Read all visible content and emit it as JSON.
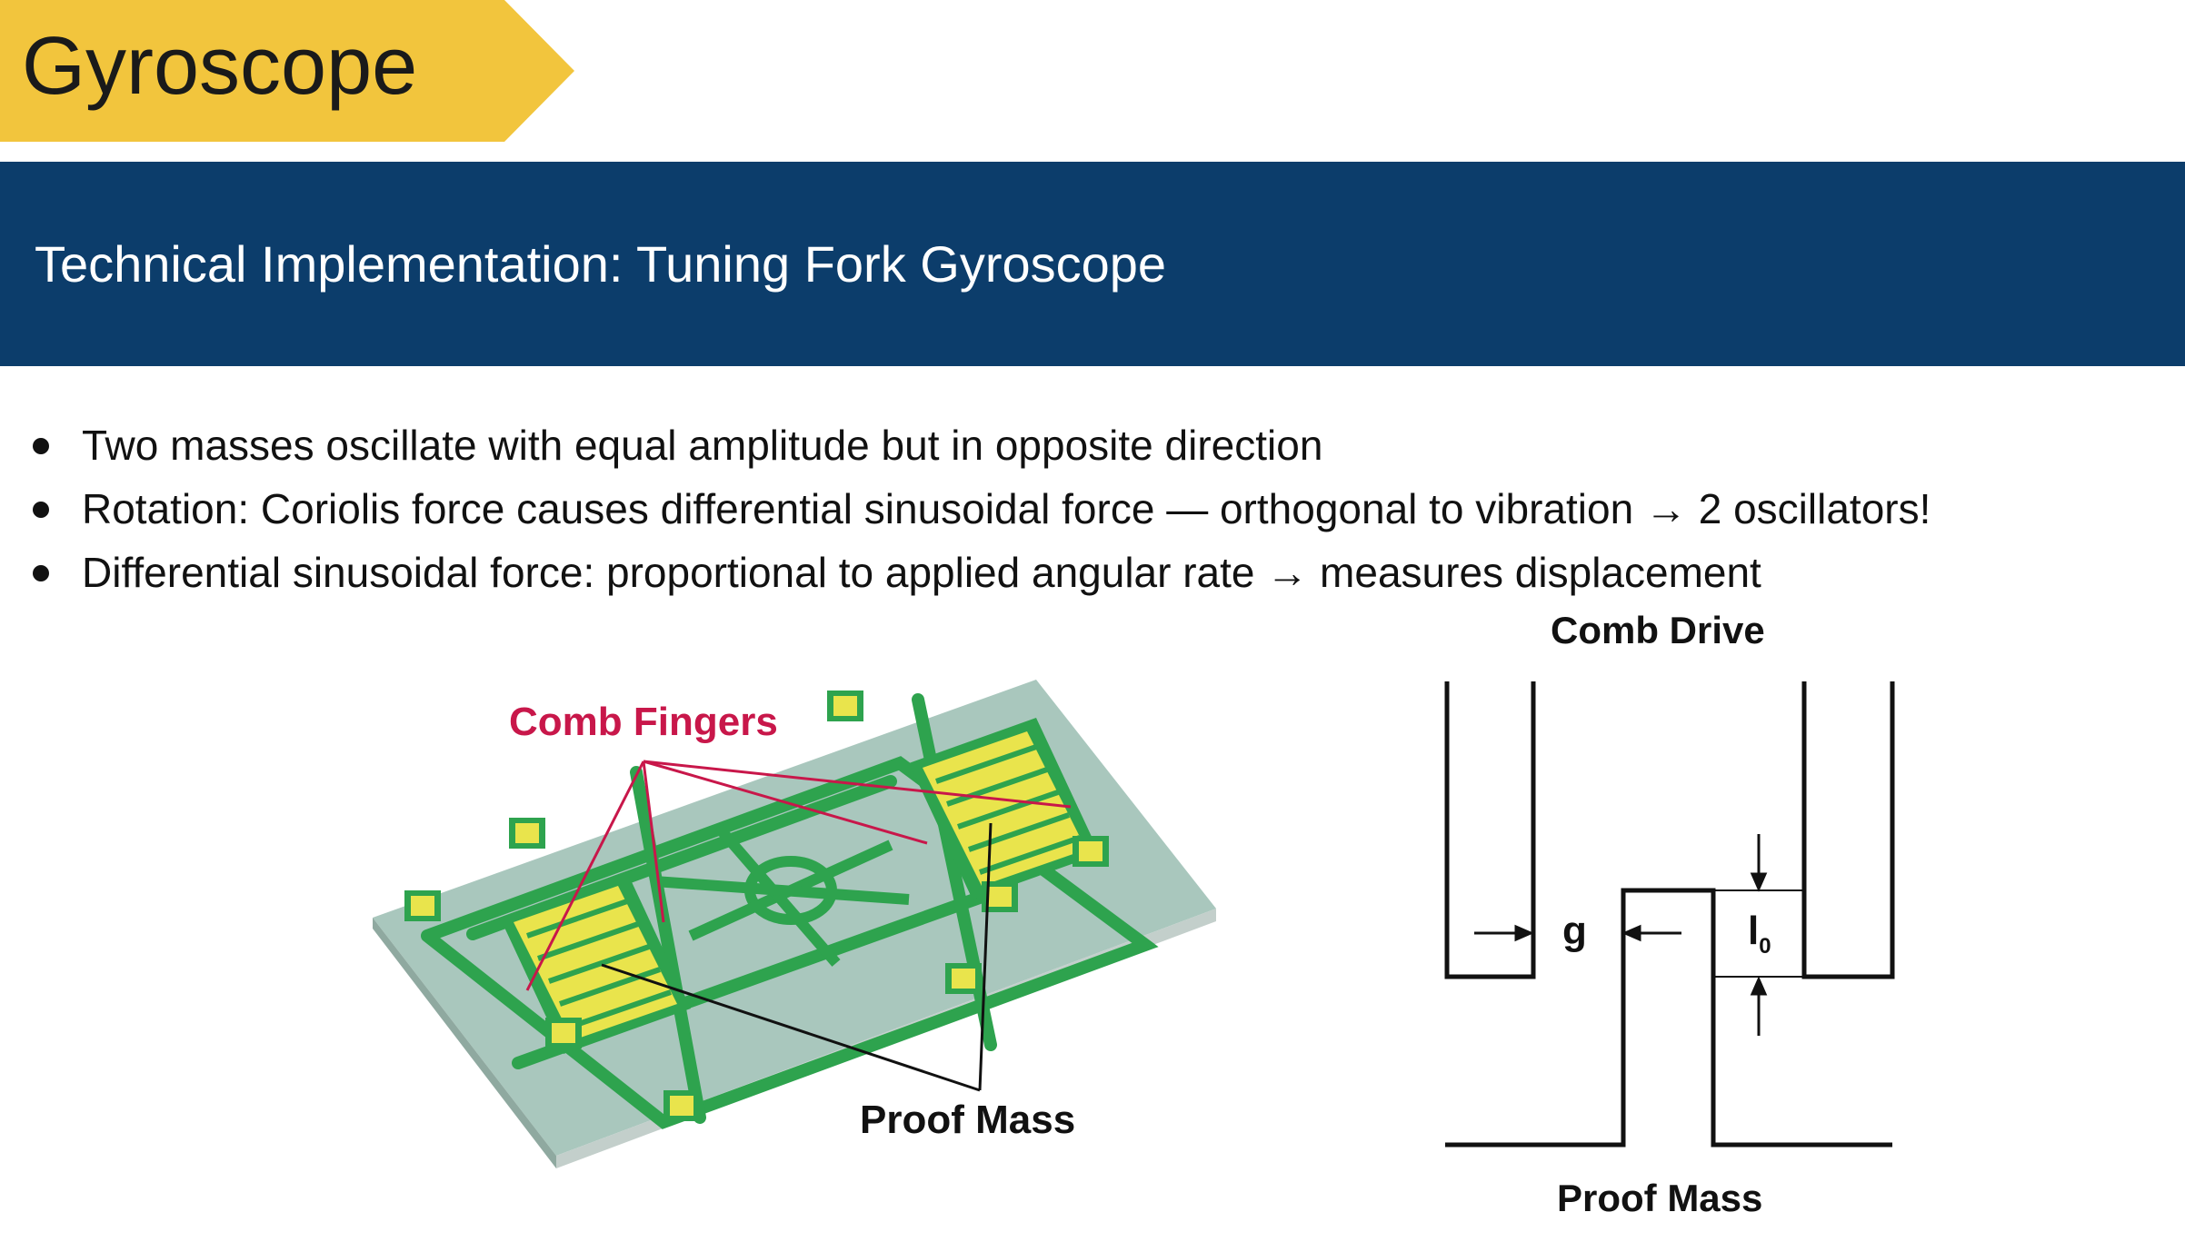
{
  "slide": {
    "title": "Gyroscope",
    "subtitle": "Technical Implementation: Tuning Fork Gyroscope",
    "bullets": [
      "Two masses oscillate with equal amplitude but in opposite direction",
      "Rotation: Coriolis force causes differential sinusoidal force — orthogonal to vibration → 2 oscillators!",
      "Differential sinusoidal force: proportional to applied angular rate → measures displacement"
    ]
  },
  "figure": {
    "comb_fingers_label": "Comb Fingers",
    "proof_mass_label": "Proof Mass"
  },
  "comb_drive": {
    "title": "Comb Drive",
    "gap_label": "g",
    "overlap_label": "l",
    "overlap_subscript": "0",
    "bottom_label": "Proof Mass"
  },
  "colors": {
    "title_tab": "#f2c53d",
    "banner": "#0c3d6b",
    "comb_fingers_label": "#c8174a",
    "structure_green": "#2ea34e",
    "structure_yellow": "#e9e44c",
    "substrate": "#a9c7bd"
  }
}
